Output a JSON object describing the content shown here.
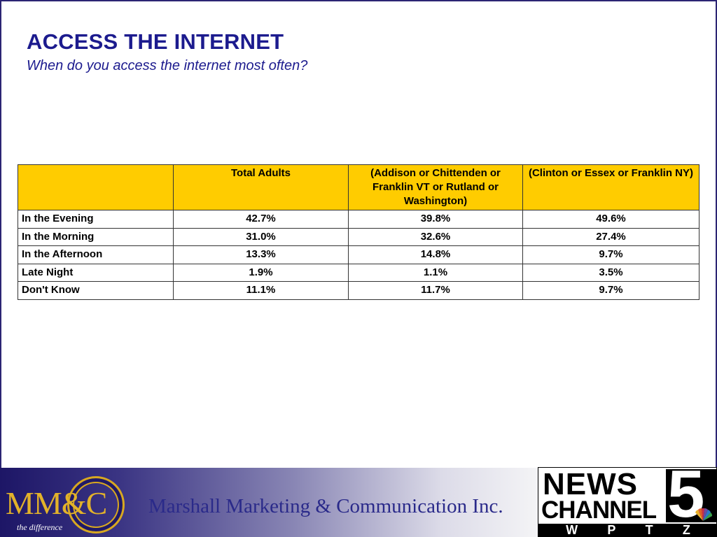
{
  "header": {
    "title": "ACCESS THE INTERNET",
    "subtitle": "When do you access the internet most often?"
  },
  "table": {
    "columns": [
      "",
      "Total Adults",
      "(Addison or Chittenden or Franklin VT or Rutland or Washington)",
      "(Clinton or Essex or Franklin NY)"
    ],
    "rows": [
      {
        "label": "In the Evening",
        "values": [
          "42.7%",
          "39.8%",
          "49.6%"
        ]
      },
      {
        "label": "In the Morning",
        "values": [
          "31.0%",
          "32.6%",
          "27.4%"
        ]
      },
      {
        "label": "In the Afternoon",
        "values": [
          "13.3%",
          "14.8%",
          "9.7%"
        ]
      },
      {
        "label": "Late Night",
        "values": [
          "1.9%",
          "1.1%",
          "3.5%"
        ]
      },
      {
        "label": "Don't Know",
        "values": [
          "11.1%",
          "11.7%",
          "9.7%"
        ]
      }
    ],
    "header_color": "#ffcc00"
  },
  "footer": {
    "logo_text": "MM&C",
    "logo_tagline": "the difference",
    "company": "Marshall Marketing & Communication Inc.",
    "station_logo": {
      "line1": "NEWS",
      "line2": "CHANNEL",
      "number": "5",
      "call_letters": [
        "W",
        "P",
        "T",
        "Z"
      ]
    }
  },
  "colors": {
    "title": "#1c1b8e",
    "footer_dark": "#1d1666",
    "logo_gold": "#e2b22a"
  }
}
